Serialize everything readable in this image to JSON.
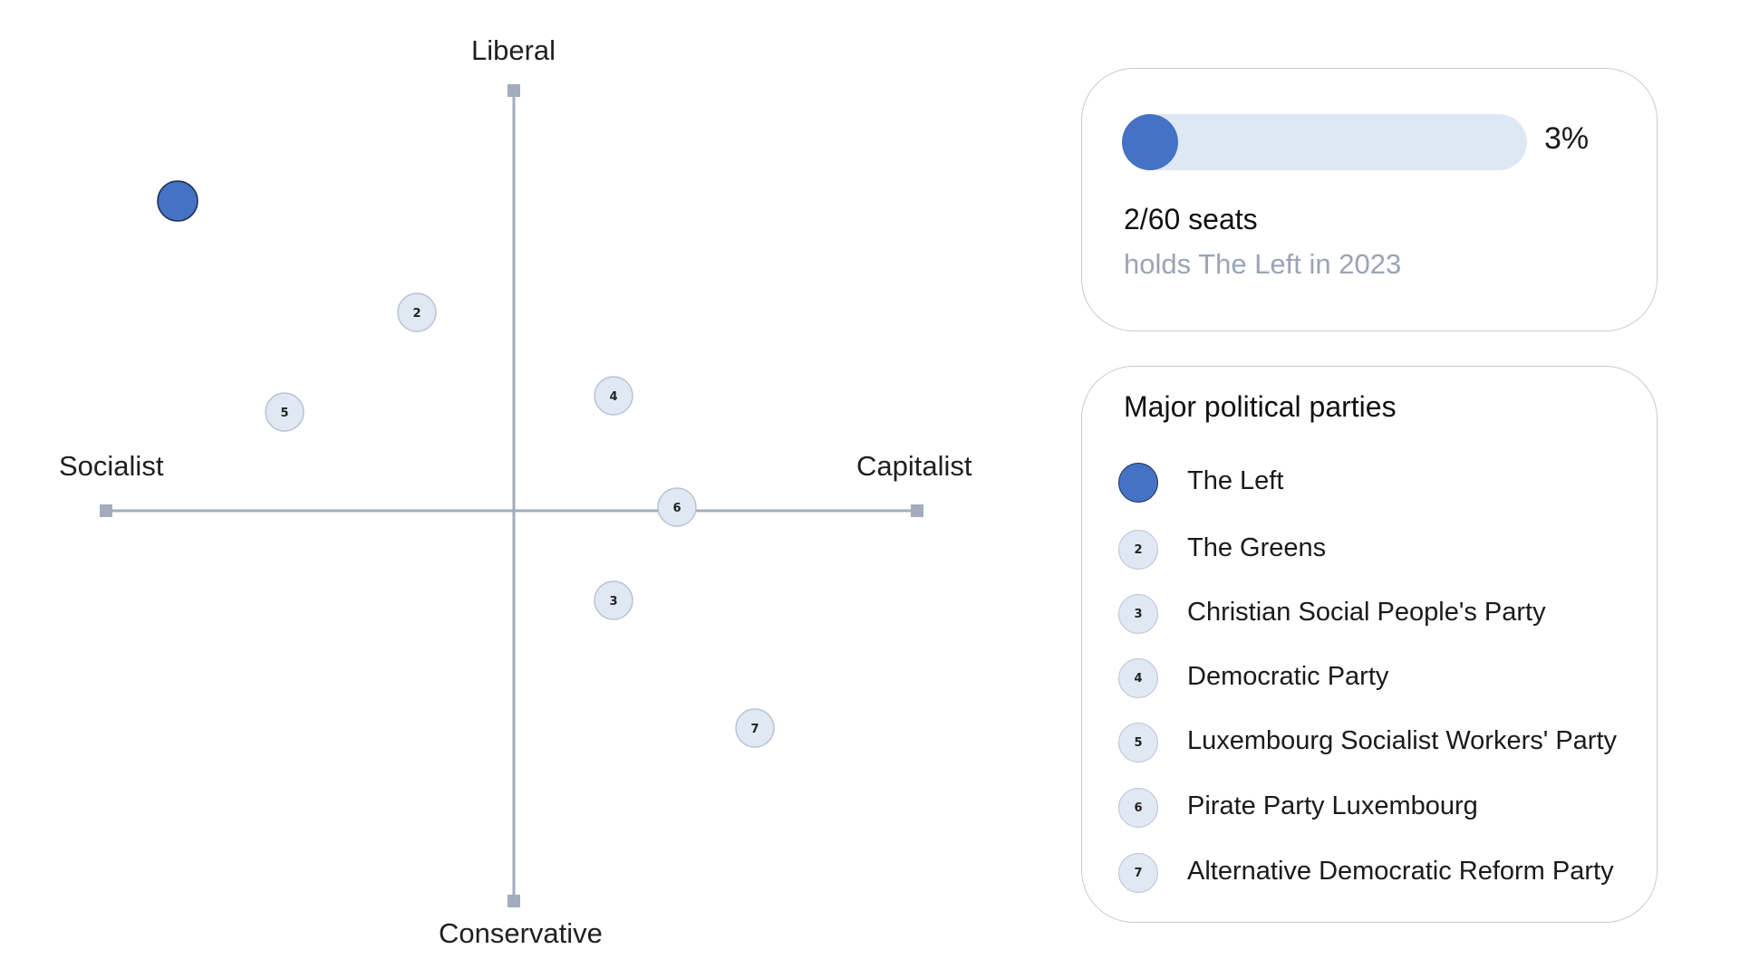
{
  "compass": {
    "labels": {
      "top": "Liberal",
      "bottom": "Conservative",
      "left": "Socialist",
      "right": "Capitalist"
    },
    "axis_color": "#a3acbd",
    "highlight_color": "#4472c4",
    "marker_fill": "#dfe8f3",
    "markers": [
      {
        "id": 1,
        "label": "",
        "highlighted": true
      },
      {
        "id": 2,
        "label": "2"
      },
      {
        "id": 3,
        "label": "3"
      },
      {
        "id": 4,
        "label": "4"
      },
      {
        "id": 5,
        "label": "5"
      },
      {
        "id": 6,
        "label": "6"
      },
      {
        "id": 7,
        "label": "7"
      }
    ]
  },
  "seats_card": {
    "progress_fraction": 0.03,
    "percent_label": "3%",
    "seats_text": "2/60 seats",
    "subtitle": "holds The Left in 2023"
  },
  "legend": {
    "title": "Major political parties",
    "items": [
      {
        "marker": "",
        "name": "The Left",
        "highlighted": true
      },
      {
        "marker": "2",
        "name": "The Greens"
      },
      {
        "marker": "3",
        "name": "Christian Social People's Party"
      },
      {
        "marker": "4",
        "name": "Democratic Party"
      },
      {
        "marker": "5",
        "name": "Luxembourg Socialist Workers' Party"
      },
      {
        "marker": "6",
        "name": "Pirate Party Luxembourg"
      },
      {
        "marker": "7",
        "name": "Alternative Democratic Reform Party"
      }
    ]
  }
}
